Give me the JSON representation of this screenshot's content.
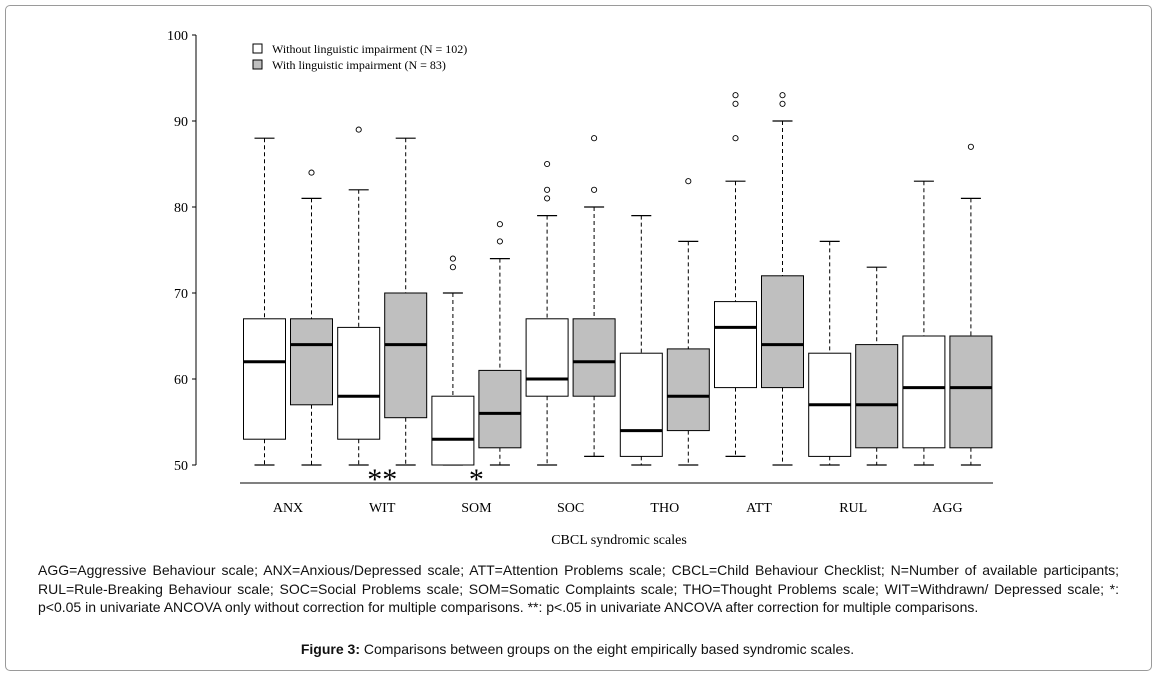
{
  "chart_data": {
    "type": "boxplot",
    "xlabel": "CBCL syndromic scales",
    "ylabel": "",
    "ylim": [
      50,
      100
    ],
    "yticks": [
      50,
      60,
      70,
      80,
      90,
      100
    ],
    "grid": false,
    "legend_position": "top-left",
    "categories": [
      "ANX",
      "WIT",
      "SOM",
      "SOC",
      "THO",
      "ATT",
      "RUL",
      "AGG"
    ],
    "significance": [
      {
        "category": "WIT",
        "marker": "**"
      },
      {
        "category": "SOM",
        "marker": "*"
      }
    ],
    "series": [
      {
        "name": "Without linguistic impairment (N = 102)",
        "color": "#ffffff",
        "boxes": [
          {
            "min": 50,
            "q1": 53,
            "median": 62,
            "q3": 67,
            "max": 88,
            "outliers": []
          },
          {
            "min": 50,
            "q1": 53,
            "median": 58,
            "q3": 66,
            "max": 82,
            "outliers": [
              89
            ]
          },
          {
            "min": 50,
            "q1": 50,
            "median": 53,
            "q3": 58,
            "max": 70,
            "outliers": [
              73,
              74
            ]
          },
          {
            "min": 50,
            "q1": 58,
            "median": 60,
            "q3": 67,
            "max": 79,
            "outliers": [
              81,
              82,
              85
            ]
          },
          {
            "min": 50,
            "q1": 51,
            "median": 54,
            "q3": 63,
            "max": 79,
            "outliers": []
          },
          {
            "min": 51,
            "q1": 59,
            "median": 66,
            "q3": 69,
            "max": 83,
            "outliers": [
              88,
              92,
              93
            ]
          },
          {
            "min": 50,
            "q1": 51,
            "median": 57,
            "q3": 63,
            "max": 76,
            "outliers": []
          },
          {
            "min": 50,
            "q1": 52,
            "median": 59,
            "q3": 65,
            "max": 83,
            "outliers": []
          }
        ]
      },
      {
        "name": "With linguistic impairment (N = 83)",
        "color": "#bfbfbf",
        "boxes": [
          {
            "min": 50,
            "q1": 57,
            "median": 64,
            "q3": 67,
            "max": 81,
            "outliers": [
              84
            ]
          },
          {
            "min": 50,
            "q1": 55.5,
            "median": 64,
            "q3": 70,
            "max": 88,
            "outliers": []
          },
          {
            "min": 50,
            "q1": 52,
            "median": 56,
            "q3": 61,
            "max": 74,
            "outliers": [
              76,
              78
            ]
          },
          {
            "min": 51,
            "q1": 58,
            "median": 62,
            "q3": 67,
            "max": 80,
            "outliers": [
              82,
              88
            ]
          },
          {
            "min": 50,
            "q1": 54,
            "median": 58,
            "q3": 63.5,
            "max": 76,
            "outliers": [
              83
            ]
          },
          {
            "min": 50,
            "q1": 59,
            "median": 64,
            "q3": 72,
            "max": 90,
            "outliers": [
              92,
              93
            ]
          },
          {
            "min": 50,
            "q1": 52,
            "median": 57,
            "q3": 64,
            "max": 73,
            "outliers": []
          },
          {
            "min": 50,
            "q1": 52,
            "median": 59,
            "q3": 65,
            "max": 81,
            "outliers": [
              87
            ]
          }
        ]
      }
    ]
  },
  "caption": {
    "note": "AGG=Aggressive Behaviour scale; ANX=Anxious/Depressed scale; ATT=Attention Problems scale; CBCL=Child Behaviour Checklist; N=Number of available participants; RUL=Rule-Breaking Behaviour scale; SOC=Social Problems scale; SOM=Somatic Complaints scale; THO=Thought Problems scale; WIT=Withdrawn/ Depressed scale; *: p<0.05 in univariate ANCOVA only without correction for multiple comparisons. **: p<.05 in univariate ANCOVA after correction for multiple comparisons.",
    "figure_label": "Figure 3:",
    "figure_text": " Comparisons between groups on the eight empirically based syndromic scales."
  }
}
